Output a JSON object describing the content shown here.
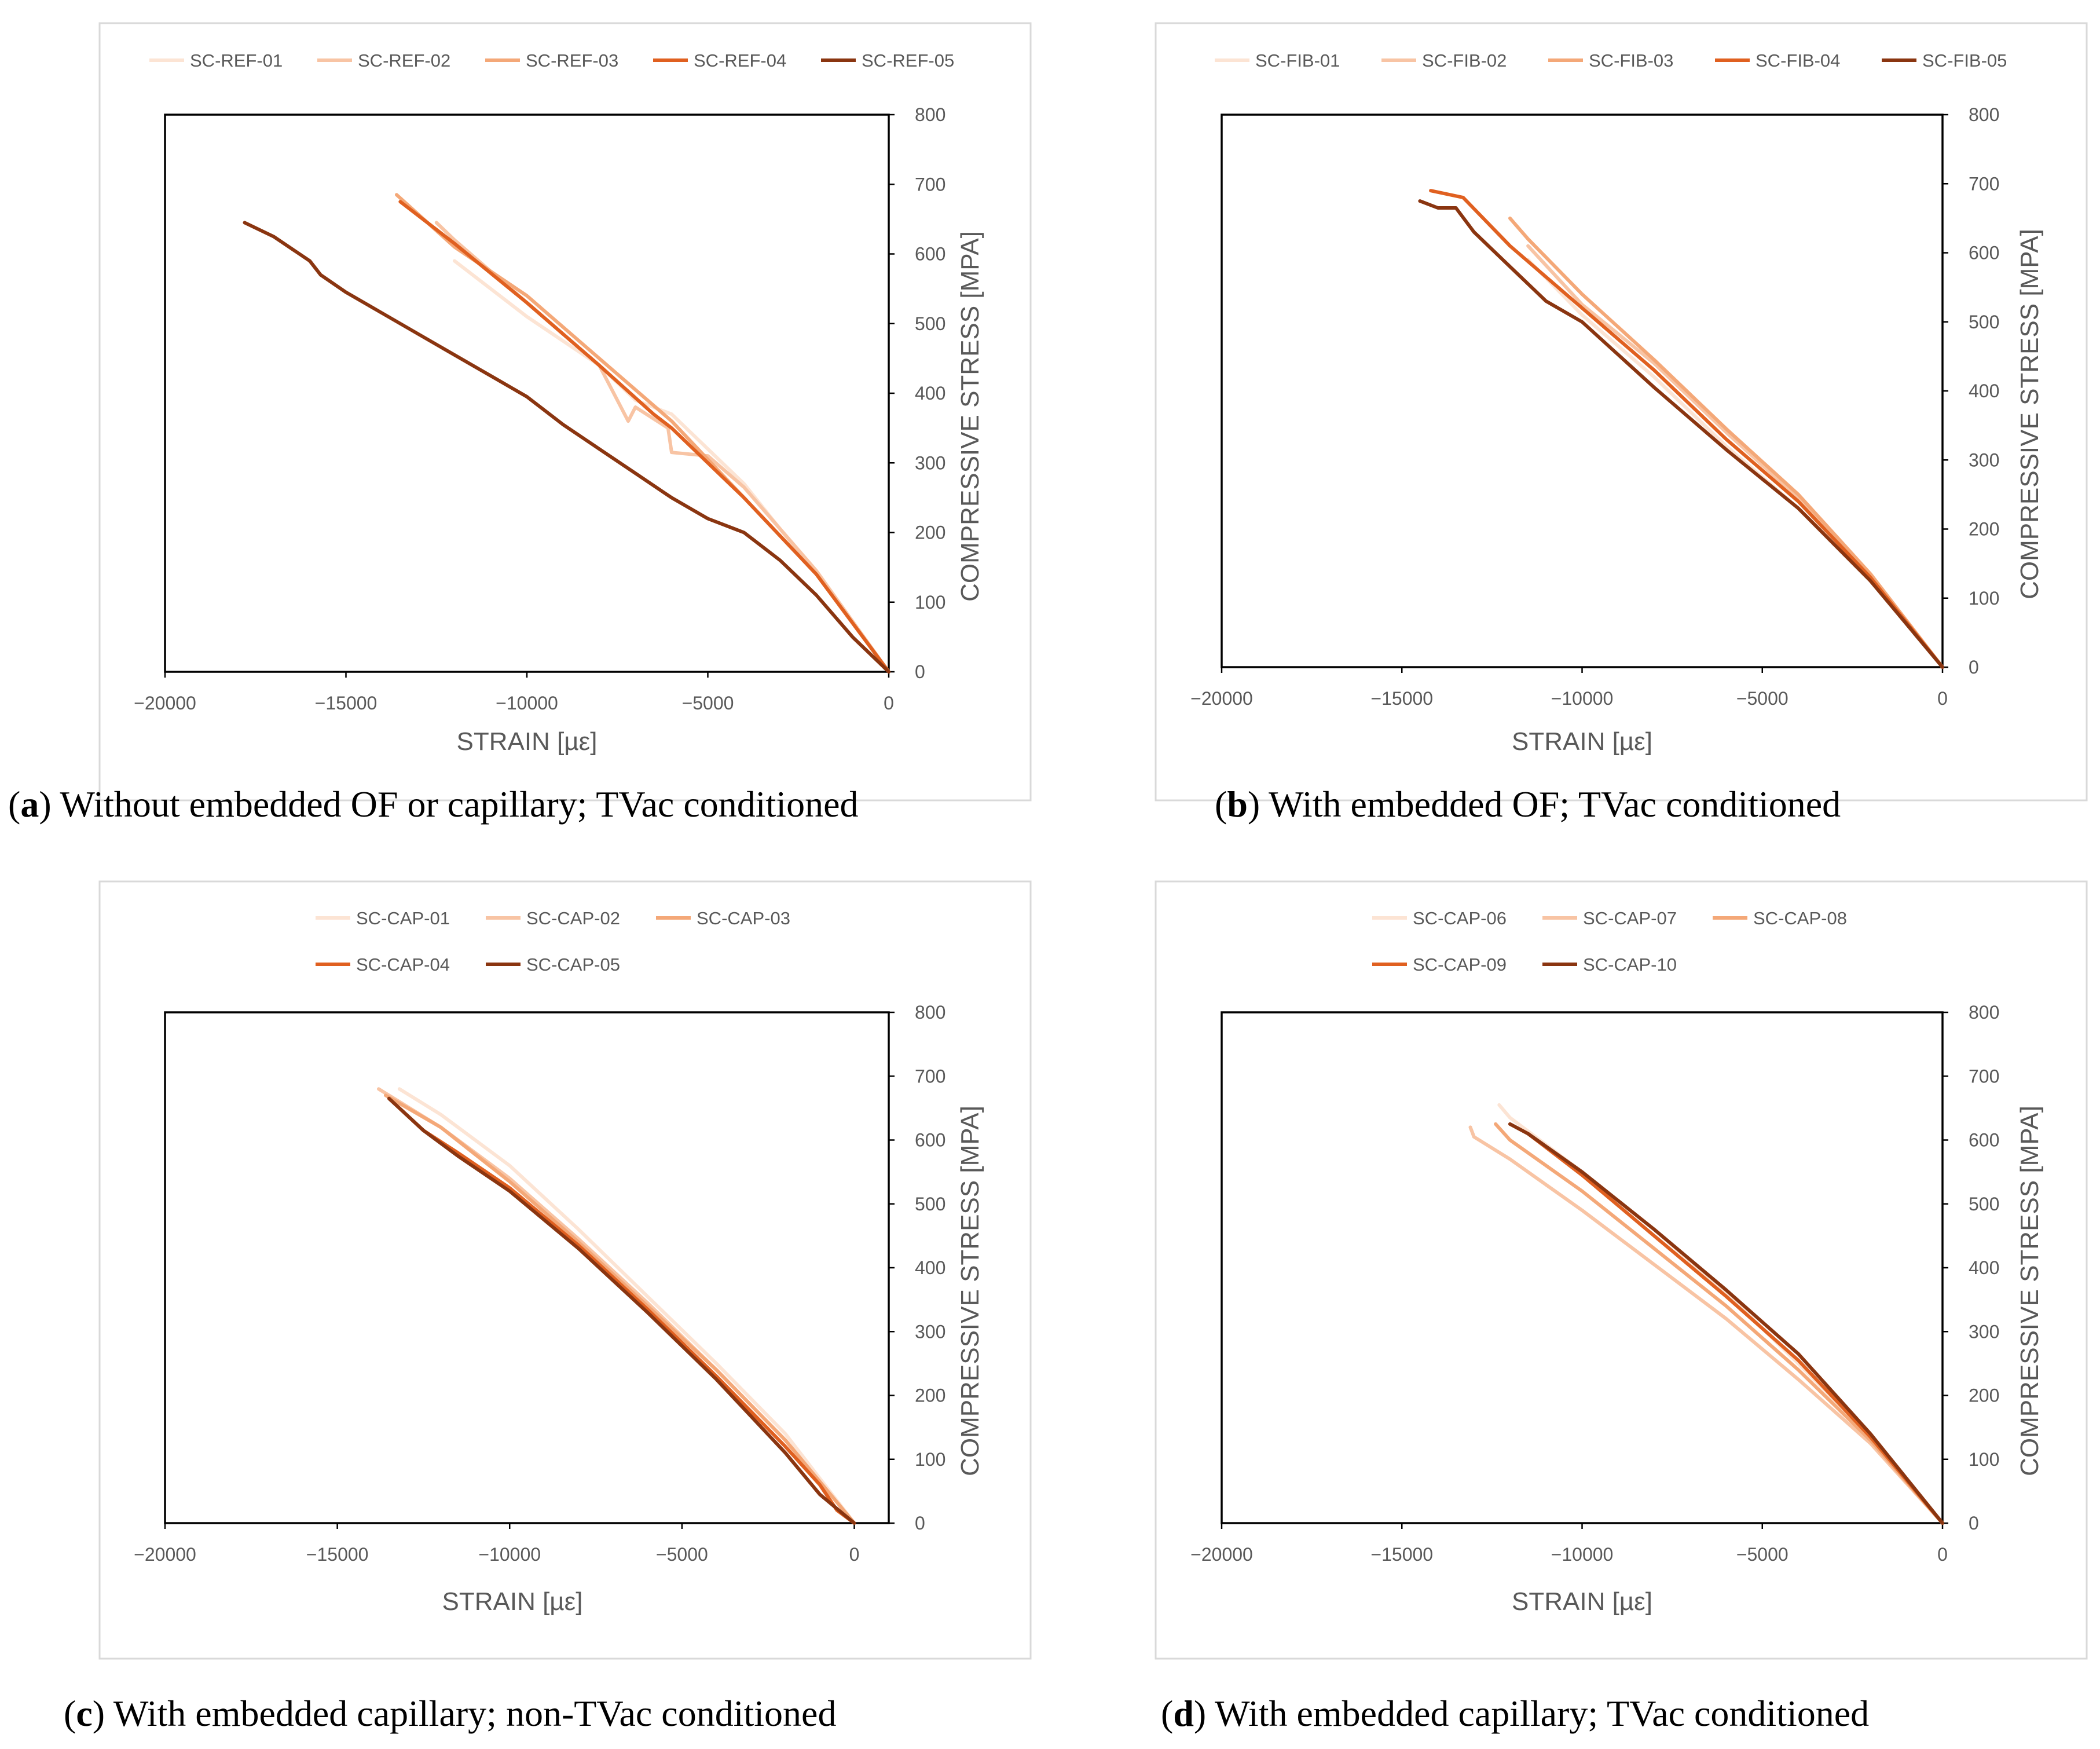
{
  "chart_data": [
    {
      "type": "line",
      "panel": "a",
      "caption_letter": "a",
      "caption": "Without embedded OF or capillary; TVac conditioned",
      "xlabel": "STRAIN [µε]",
      "ylabel": "COMPRESSIVE STRESS [MPA]",
      "xlim": [
        -20000,
        0
      ],
      "ylim": [
        0,
        800
      ],
      "xticks": [
        -20000,
        -15000,
        -10000,
        -5000,
        0
      ],
      "yticks": [
        0,
        100,
        200,
        300,
        400,
        500,
        600,
        700,
        800
      ],
      "legend_position": "top",
      "series": [
        {
          "name": "SC-REF-01",
          "color": "#fce4d4",
          "points": [
            [
              0,
              0
            ],
            [
              -2000,
              140
            ],
            [
              -4000,
              270
            ],
            [
              -6000,
              370
            ],
            [
              -7000,
              390
            ],
            [
              -8000,
              440
            ],
            [
              -10000,
              510
            ],
            [
              -12000,
              590
            ]
          ]
        },
        {
          "name": "SC-REF-02",
          "color": "#f8c4a4",
          "points": [
            [
              0,
              0
            ],
            [
              -2000,
              145
            ],
            [
              -4000,
              265
            ],
            [
              -5000,
              310
            ],
            [
              -6000,
              315
            ],
            [
              -6100,
              350
            ],
            [
              -7000,
              380
            ],
            [
              -7200,
              360
            ],
            [
              -8000,
              440
            ],
            [
              -10000,
              530
            ],
            [
              -12000,
              620
            ],
            [
              -12500,
              645
            ]
          ]
        },
        {
          "name": "SC-REF-03",
          "color": "#f4a878",
          "points": [
            [
              0,
              0
            ],
            [
              -2000,
              140
            ],
            [
              -4000,
              250
            ],
            [
              -6000,
              360
            ],
            [
              -8000,
              450
            ],
            [
              -10000,
              540
            ],
            [
              -12000,
              610
            ],
            [
              -13600,
              685
            ]
          ]
        },
        {
          "name": "SC-REF-04",
          "color": "#e06020",
          "points": [
            [
              0,
              0
            ],
            [
              -2000,
              140
            ],
            [
              -4000,
              250
            ],
            [
              -6000,
              350
            ],
            [
              -6500,
              370
            ],
            [
              -8000,
              440
            ],
            [
              -10000,
              530
            ],
            [
              -12000,
              615
            ],
            [
              -13500,
              675
            ]
          ]
        },
        {
          "name": "SC-REF-05",
          "color": "#8a3510",
          "points": [
            [
              0,
              0
            ],
            [
              -1000,
              50
            ],
            [
              -2000,
              110
            ],
            [
              -3000,
              160
            ],
            [
              -4000,
              200
            ],
            [
              -5000,
              220
            ],
            [
              -6000,
              250
            ],
            [
              -7000,
              285
            ],
            [
              -8000,
              320
            ],
            [
              -9000,
              355
            ],
            [
              -10000,
              395
            ],
            [
              -11000,
              425
            ],
            [
              -12000,
              455
            ],
            [
              -13000,
              485
            ],
            [
              -14000,
              515
            ],
            [
              -15000,
              545
            ],
            [
              -15700,
              570
            ],
            [
              -16000,
              590
            ],
            [
              -17000,
              625
            ],
            [
              -17800,
              645
            ]
          ]
        }
      ]
    },
    {
      "type": "line",
      "panel": "b",
      "caption_letter": "b",
      "caption": "With embedded OF; TVac conditioned",
      "xlabel": "STRAIN [µε]",
      "ylabel": "COMPRESSIVE STRESS [MPA]",
      "xlim": [
        -20000,
        0
      ],
      "ylim": [
        0,
        800
      ],
      "xticks": [
        -20000,
        -15000,
        -10000,
        -5000,
        0
      ],
      "yticks": [
        0,
        100,
        200,
        300,
        400,
        500,
        600,
        700,
        800
      ],
      "legend_position": "top",
      "series": [
        {
          "name": "SC-FIB-01",
          "color": "#fce4d4",
          "points": [
            [
              0,
              0
            ],
            [
              -2000,
              130
            ],
            [
              -4000,
              230
            ],
            [
              -6000,
              320
            ],
            [
              -8000,
              420
            ],
            [
              -10000,
              510
            ],
            [
              -11500,
              590
            ]
          ]
        },
        {
          "name": "SC-FIB-02",
          "color": "#f8c4a4",
          "points": [
            [
              0,
              0
            ],
            [
              -2000,
              135
            ],
            [
              -4000,
              245
            ],
            [
              -6000,
              340
            ],
            [
              -8000,
              440
            ],
            [
              -10000,
              525
            ],
            [
              -11500,
              610
            ]
          ]
        },
        {
          "name": "SC-FIB-03",
          "color": "#f4a878",
          "points": [
            [
              0,
              0
            ],
            [
              -2000,
              135
            ],
            [
              -4000,
              250
            ],
            [
              -6000,
              345
            ],
            [
              -8000,
              445
            ],
            [
              -10000,
              540
            ],
            [
              -11500,
              620
            ],
            [
              -12000,
              650
            ]
          ]
        },
        {
          "name": "SC-FIB-04",
          "color": "#e06020",
          "points": [
            [
              0,
              0
            ],
            [
              -2000,
              130
            ],
            [
              -4000,
              240
            ],
            [
              -6000,
              330
            ],
            [
              -8000,
              430
            ],
            [
              -10000,
              520
            ],
            [
              -12000,
              610
            ],
            [
              -13300,
              680
            ],
            [
              -14200,
              690
            ]
          ]
        },
        {
          "name": "SC-FIB-05",
          "color": "#8a3510",
          "points": [
            [
              0,
              0
            ],
            [
              -2000,
              125
            ],
            [
              -4000,
              230
            ],
            [
              -6000,
              315
            ],
            [
              -8000,
              405
            ],
            [
              -10000,
              500
            ],
            [
              -11000,
              530
            ],
            [
              -12000,
              580
            ],
            [
              -13000,
              630
            ],
            [
              -13500,
              665
            ],
            [
              -14000,
              665
            ],
            [
              -14500,
              675
            ]
          ]
        }
      ]
    },
    {
      "type": "line",
      "panel": "c",
      "caption_letter": "c",
      "caption": "With embedded capillary; non-TVac conditioned",
      "xlabel": "STRAIN [µε]",
      "ylabel": "COMPRESSIVE STRESS [MPA]",
      "xlim": [
        -20000,
        1000
      ],
      "ylim": [
        0,
        800
      ],
      "xticks": [
        -20000,
        -15000,
        -10000,
        -5000,
        0
      ],
      "yticks": [
        0,
        100,
        200,
        300,
        400,
        500,
        600,
        700,
        800
      ],
      "legend_position": "top",
      "series": [
        {
          "name": "SC-CAP-01",
          "color": "#fce4d4",
          "points": [
            [
              0,
              0
            ],
            [
              -2000,
              140
            ],
            [
              -4000,
              250
            ],
            [
              -6000,
              355
            ],
            [
              -8000,
              460
            ],
            [
              -10000,
              560
            ],
            [
              -12000,
              640
            ],
            [
              -13200,
              680
            ]
          ]
        },
        {
          "name": "SC-CAP-02",
          "color": "#f8c4a4",
          "points": [
            [
              0,
              0
            ],
            [
              -2000,
              130
            ],
            [
              -4000,
              240
            ],
            [
              -6000,
              345
            ],
            [
              -8000,
              445
            ],
            [
              -10000,
              540
            ],
            [
              -12000,
              620
            ],
            [
              -13800,
              680
            ]
          ]
        },
        {
          "name": "SC-CAP-03",
          "color": "#f4a878",
          "points": [
            [
              0,
              0
            ],
            [
              -2000,
              130
            ],
            [
              -4000,
              240
            ],
            [
              -6000,
              340
            ],
            [
              -8000,
              440
            ],
            [
              -10000,
              535
            ],
            [
              -12000,
              620
            ],
            [
              -13600,
              670
            ]
          ]
        },
        {
          "name": "SC-CAP-04",
          "color": "#e06020",
          "points": [
            [
              0,
              0
            ],
            [
              -500,
              20
            ],
            [
              -1000,
              60
            ],
            [
              -2000,
              120
            ],
            [
              -4000,
              230
            ],
            [
              -6000,
              335
            ],
            [
              -8000,
              435
            ],
            [
              -10000,
              525
            ],
            [
              -11500,
              580
            ],
            [
              -12500,
              615
            ],
            [
              -13500,
              665
            ]
          ]
        },
        {
          "name": "SC-CAP-05",
          "color": "#8a3510",
          "points": [
            [
              0,
              0
            ],
            [
              -1000,
              45
            ],
            [
              -2000,
              110
            ],
            [
              -4000,
              225
            ],
            [
              -6000,
              330
            ],
            [
              -8000,
              430
            ],
            [
              -10000,
              520
            ],
            [
              -11500,
              575
            ],
            [
              -12500,
              615
            ],
            [
              -13500,
              665
            ]
          ]
        }
      ]
    },
    {
      "type": "line",
      "panel": "d",
      "caption_letter": "d",
      "caption": "With embedded capillary; TVac conditioned",
      "xlabel": "STRAIN [µε]",
      "ylabel": "COMPRESSIVE STRESS [MPA]",
      "xlim": [
        -20000,
        0
      ],
      "ylim": [
        0,
        800
      ],
      "xticks": [
        -20000,
        -15000,
        -10000,
        -5000,
        0
      ],
      "yticks": [
        0,
        100,
        200,
        300,
        400,
        500,
        600,
        700,
        800
      ],
      "legend_position": "top",
      "series": [
        {
          "name": "SC-CAP-06",
          "color": "#fce4d4",
          "points": [
            [
              0,
              0
            ],
            [
              -2000,
              135
            ],
            [
              -4000,
              250
            ],
            [
              -6000,
              360
            ],
            [
              -8000,
              460
            ],
            [
              -10000,
              550
            ],
            [
              -12000,
              635
            ],
            [
              -12300,
              655
            ]
          ]
        },
        {
          "name": "SC-CAP-07",
          "color": "#f8c4a4",
          "points": [
            [
              0,
              0
            ],
            [
              -2000,
              125
            ],
            [
              -4000,
              225
            ],
            [
              -6000,
              320
            ],
            [
              -8000,
              405
            ],
            [
              -10000,
              490
            ],
            [
              -12000,
              570
            ],
            [
              -13000,
              605
            ],
            [
              -13100,
              620
            ]
          ]
        },
        {
          "name": "SC-CAP-08",
          "color": "#f4a878",
          "points": [
            [
              0,
              0
            ],
            [
              -2000,
              130
            ],
            [
              -4000,
              240
            ],
            [
              -6000,
              340
            ],
            [
              -8000,
              430
            ],
            [
              -10000,
              520
            ],
            [
              -12000,
              600
            ],
            [
              -12400,
              625
            ]
          ]
        },
        {
          "name": "SC-CAP-09",
          "color": "#e06020",
          "points": [
            [
              0,
              0
            ],
            [
              -2000,
              135
            ],
            [
              -4000,
              255
            ],
            [
              -6000,
              355
            ],
            [
              -8000,
              450
            ],
            [
              -10000,
              545
            ],
            [
              -11500,
              610
            ],
            [
              -12000,
              625
            ]
          ]
        },
        {
          "name": "SC-CAP-10",
          "color": "#8a3510",
          "points": [
            [
              0,
              0
            ],
            [
              -2000,
              140
            ],
            [
              -4000,
              265
            ],
            [
              -6000,
              365
            ],
            [
              -8000,
              460
            ],
            [
              -10000,
              550
            ],
            [
              -11500,
              610
            ],
            [
              -12000,
              625
            ]
          ]
        }
      ]
    }
  ]
}
